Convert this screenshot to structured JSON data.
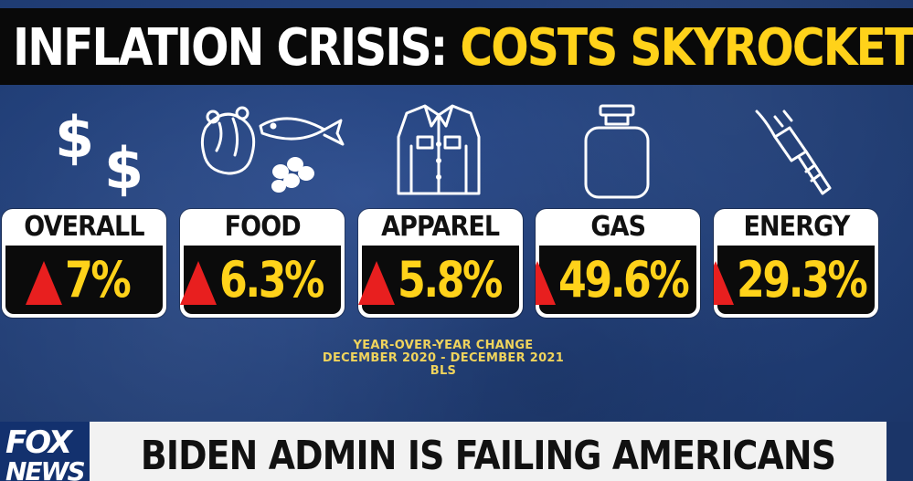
{
  "title": {
    "part1": "INFLATION CRISIS:",
    "part2": "COSTS SKYROCKET"
  },
  "categories": [
    {
      "label": "OVERALL",
      "value": "7%",
      "icon": "dollar-signs-icon"
    },
    {
      "label": "FOOD",
      "value": "6.3%",
      "icon": "food-icon"
    },
    {
      "label": "APPAREL",
      "value": "5.8%",
      "icon": "jacket-icon"
    },
    {
      "label": "GAS",
      "value": "49.6%",
      "icon": "gas-tank-icon"
    },
    {
      "label": "ENERGY",
      "value": "29.3%",
      "icon": "plug-icon"
    }
  ],
  "caption": {
    "line1": "YEAR-OVER-YEAR CHANGE",
    "line2": "DECEMBER 2020 - DECEMBER 2021",
    "line3": "BLS"
  },
  "lower_third": "BIDEN ADMIN IS FAILING AMERICANS",
  "logo": {
    "line1": "FOX",
    "line2": "NEWS"
  },
  "colors": {
    "accent_yellow": "#ffd21a",
    "arrow_red": "#e81f1f",
    "background_blue": "#22407a"
  }
}
